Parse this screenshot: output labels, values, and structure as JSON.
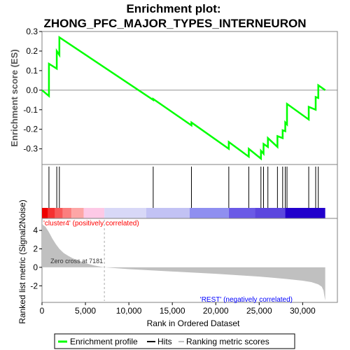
{
  "chart_data": {
    "type": "line",
    "title_line1": "Enrichment plot:",
    "title_line2": "ZHONG_PFC_MAJOR_TYPES_INTERNEURON",
    "es_panel": {
      "ylabel": "Enrichment score (ES)",
      "ylim": [
        -0.38,
        0.3
      ],
      "yticks": [
        0.3,
        0.2,
        0.1,
        0.0,
        -0.1,
        -0.2,
        -0.3
      ],
      "ytick_labels": [
        "0.3",
        "0.2",
        "0.1",
        "0.0",
        "-0.1",
        "-0.2",
        "-0.3"
      ],
      "line_color": "#00ff00",
      "series": [
        {
          "x": [
            0,
            800,
            800,
            1700,
            1700,
            2000,
            2000,
            12800,
            12800,
            17200,
            17200,
            21500,
            21500,
            23800,
            23800,
            25200,
            25200,
            25500,
            25500,
            26000,
            26000,
            27100,
            27100,
            27700,
            27700,
            28000,
            28000,
            28200,
            28200,
            30700,
            30700,
            31500,
            31500,
            31800,
            31800,
            32600
          ],
          "y": [
            0.0,
            -0.03,
            0.135,
            0.11,
            0.2,
            0.18,
            0.27,
            -0.05,
            -0.045,
            -0.18,
            -0.165,
            -0.3,
            -0.265,
            -0.34,
            -0.3,
            -0.35,
            -0.31,
            -0.325,
            -0.275,
            -0.29,
            -0.245,
            -0.29,
            -0.235,
            -0.245,
            -0.205,
            -0.21,
            -0.165,
            -0.175,
            -0.07,
            -0.15,
            -0.085,
            -0.1,
            -0.035,
            -0.04,
            0.025,
            0.0
          ]
        }
      ]
    },
    "hits_panel": {
      "hit_positions": [
        800,
        1700,
        2000,
        12800,
        17200,
        21500,
        23800,
        25200,
        25500,
        26000,
        27100,
        27700,
        28000,
        28200,
        30700,
        31500,
        31800
      ]
    },
    "ranking_bar": {
      "segments": [
        {
          "from": 0,
          "to": 700,
          "color": "#ee0000"
        },
        {
          "from": 700,
          "to": 1500,
          "color": "#f53030"
        },
        {
          "from": 1500,
          "to": 2400,
          "color": "#f85858"
        },
        {
          "from": 2400,
          "to": 3400,
          "color": "#fb7f7f"
        },
        {
          "from": 3400,
          "to": 4800,
          "color": "#fda6a6"
        },
        {
          "from": 4800,
          "to": 7181,
          "color": "#fdc9e6"
        },
        {
          "from": 7181,
          "to": 12000,
          "color": "#d8d8f7"
        },
        {
          "from": 12000,
          "to": 17000,
          "color": "#c2c2f4"
        },
        {
          "from": 17000,
          "to": 21500,
          "color": "#8f8ff0"
        },
        {
          "from": 21500,
          "to": 24500,
          "color": "#6a5ae6"
        },
        {
          "from": 24500,
          "to": 28000,
          "color": "#5b46de"
        },
        {
          "from": 28000,
          "to": 32600,
          "color": "#2200cc"
        }
      ]
    },
    "metric_panel": {
      "ylabel": "Ranked list metric (Signal2Noise)",
      "ylim": [
        -3.8,
        5.3
      ],
      "yticks": [
        4,
        2,
        0,
        -2
      ],
      "ytick_labels": [
        "4",
        "2",
        "0",
        "-2"
      ],
      "fill_color": "#c0c0c0",
      "x": [
        0,
        100,
        400,
        800,
        1200,
        1600,
        2000,
        2500,
        3000,
        3500,
        4000,
        5000,
        6000,
        7181,
        10000,
        15000,
        20000,
        25000,
        28000,
        30000,
        31000,
        31800,
        32200,
        32400,
        32500,
        32600
      ],
      "y": [
        4.9,
        4.6,
        4.4,
        3.8,
        3.1,
        2.5,
        2.0,
        1.55,
        1.25,
        1.0,
        0.8,
        0.45,
        0.2,
        0.0,
        -0.2,
        -0.45,
        -0.7,
        -1.0,
        -1.25,
        -1.45,
        -1.6,
        -1.85,
        -2.1,
        -2.5,
        -3.1,
        -3.6
      ],
      "zero_cross_label": "Zero cross at 7181",
      "zero_cross_x": 7181,
      "positive_label": "'cluster4' (positively correlated)",
      "negative_label": "'REST' (negatively correlated)",
      "positive_color": "#ff0000",
      "negative_color": "#0000ff"
    },
    "x_axis": {
      "xlabel": "Rank in Ordered Dataset",
      "xlim": [
        0,
        34000
      ],
      "xticks": [
        0,
        5000,
        10000,
        15000,
        20000,
        25000,
        30000
      ],
      "xtick_labels": [
        "0",
        "5,000",
        "10,000",
        "15,000",
        "20,000",
        "25,000",
        "30,000"
      ]
    },
    "legend": {
      "placement": "bottom",
      "items": [
        {
          "label": "Enrichment profile",
          "color": "#00ff00"
        },
        {
          "label": "Hits",
          "color": "#000000"
        },
        {
          "label": "Ranking metric scores",
          "color": "#c0c0c0"
        }
      ]
    }
  }
}
